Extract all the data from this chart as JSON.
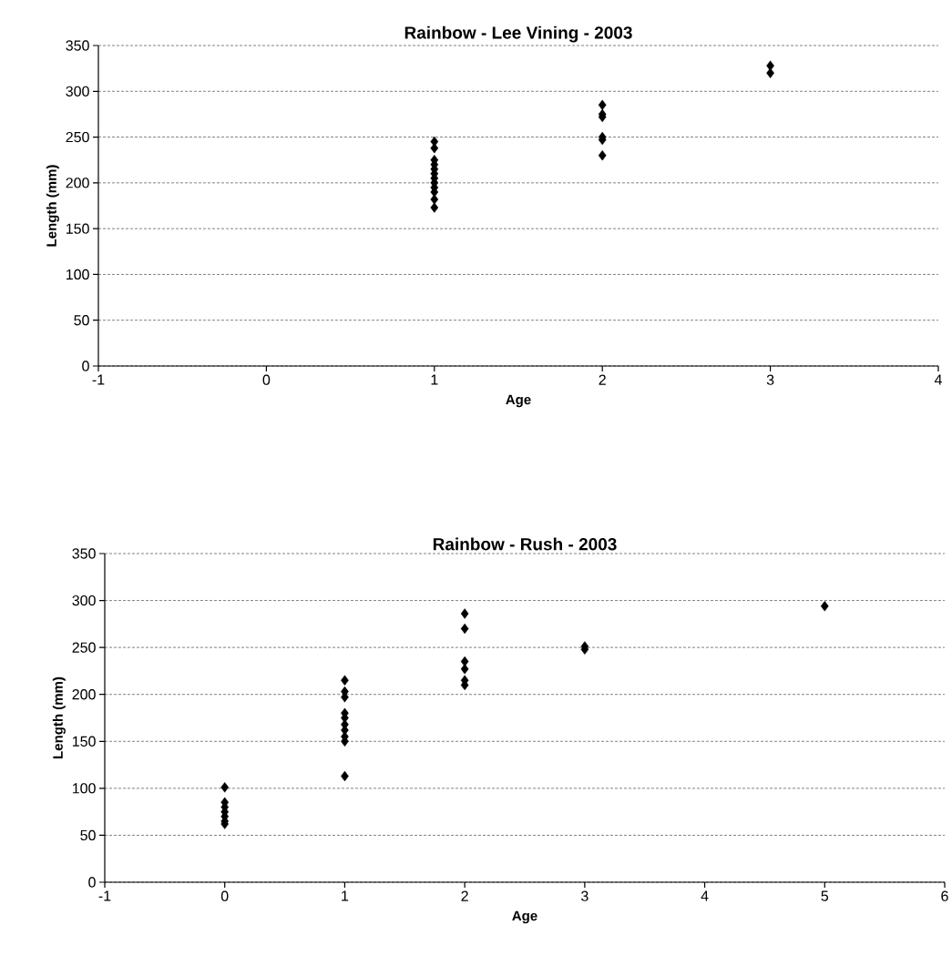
{
  "chart_data": [
    {
      "type": "scatter",
      "title": "Rainbow - Lee Vining - 2003",
      "xlabel": "Age",
      "ylabel": "Length (mm)",
      "x": [
        1,
        1,
        1,
        1,
        1,
        1,
        1,
        1,
        1,
        1,
        1,
        1,
        2,
        2,
        2,
        2,
        2,
        2,
        3,
        3
      ],
      "values": [
        245,
        238,
        225,
        220,
        215,
        210,
        205,
        200,
        195,
        190,
        182,
        173,
        285,
        275,
        272,
        250,
        247,
        230,
        328,
        320
      ],
      "color": "#000000",
      "marker": "diamond",
      "grid": "y",
      "xlim": [
        -1,
        4
      ],
      "ylim": [
        0,
        350
      ],
      "xticks": [
        -1,
        0,
        1,
        2,
        3,
        4
      ],
      "yticks": [
        0,
        50,
        100,
        150,
        200,
        250,
        300,
        350
      ]
    },
    {
      "type": "scatter",
      "title": "Rainbow - Rush - 2003",
      "xlabel": "Age",
      "ylabel": "Length (mm)",
      "x": [
        0,
        0,
        0,
        0,
        0,
        0,
        0,
        1,
        1,
        1,
        1,
        1,
        1,
        1,
        1,
        1,
        1,
        2,
        2,
        2,
        2,
        2,
        2,
        3,
        3,
        5
      ],
      "values": [
        101,
        85,
        80,
        75,
        70,
        65,
        62,
        215,
        203,
        197,
        180,
        175,
        168,
        162,
        155,
        150,
        113,
        286,
        270,
        235,
        227,
        215,
        210,
        251,
        248,
        294
      ],
      "color": "#000000",
      "marker": "diamond",
      "grid": "y",
      "xlim": [
        -1,
        6
      ],
      "ylim": [
        0,
        350
      ],
      "xticks": [
        -1,
        0,
        1,
        2,
        3,
        4,
        5,
        6
      ],
      "yticks": [
        0,
        50,
        100,
        150,
        200,
        250,
        300,
        350
      ]
    }
  ]
}
